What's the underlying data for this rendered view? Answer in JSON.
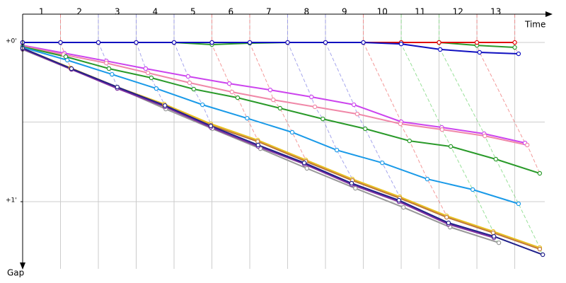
{
  "chart_data": {
    "type": "line",
    "x_label": "Time",
    "y_label": "Gap",
    "categories": [
      "1",
      "2",
      "3",
      "4",
      "5",
      "6",
      "7",
      "8",
      "9",
      "10",
      "11",
      "12",
      "13"
    ],
    "xlim": [
      0,
      13.98
    ],
    "ylim": [
      -0.178,
      1.422
    ],
    "xticks": [
      1,
      2,
      3,
      4,
      5,
      6,
      7,
      8,
      9,
      10,
      11,
      12,
      13
    ],
    "yticks": [
      {
        "value": 0,
        "label": "+0'"
      },
      {
        "value": 1,
        "label": "+1'"
      }
    ],
    "ygrid": [
      0,
      0.5,
      1
    ],
    "grid": true,
    "lap_line_colors": [
      "#f08080",
      "#9090e8",
      "#9090e8",
      "#9090e8",
      "#f08080",
      "#f08080",
      "#9090e8",
      "#9090e8",
      "#f08080",
      "#80d880",
      "#80d880",
      "#f08080",
      "#f08080"
    ],
    "series": [
      {
        "color": "#cc44ee",
        "x": [
          0,
          1.1,
          2.21,
          3.25,
          4.37,
          5.46,
          6.54,
          7.63,
          8.75,
          10.0,
          11.07,
          12.19,
          13.27
        ],
        "values": [
          0.018,
          0.067,
          0.116,
          0.164,
          0.213,
          0.258,
          0.298,
          0.342,
          0.391,
          0.498,
          0.533,
          0.573,
          0.631
        ]
      },
      {
        "color": "#f088a8",
        "x": [
          0,
          1.08,
          2.21,
          3.31,
          4.41,
          5.53,
          6.62,
          7.72,
          8.84,
          9.98,
          11.08,
          12.21,
          13.33
        ],
        "values": [
          0.022,
          0.076,
          0.129,
          0.191,
          0.253,
          0.311,
          0.36,
          0.404,
          0.449,
          0.511,
          0.547,
          0.587,
          0.644
        ]
      },
      {
        "color": "#2a9a2a",
        "x": [
          0,
          1.14,
          2.28,
          3.4,
          4.52,
          5.68,
          6.8,
          7.93,
          9.05,
          10.22,
          11.31,
          12.5,
          13.66
        ],
        "values": [
          0.027,
          0.089,
          0.164,
          0.222,
          0.293,
          0.347,
          0.413,
          0.48,
          0.542,
          0.618,
          0.653,
          0.733,
          0.822
        ]
      },
      {
        "color": "#1a9ae8",
        "x": [
          0,
          1.18,
          2.36,
          3.53,
          4.75,
          5.93,
          7.12,
          8.3,
          9.5,
          10.69,
          11.89,
          13.1
        ],
        "values": [
          0.031,
          0.111,
          0.2,
          0.289,
          0.391,
          0.476,
          0.564,
          0.676,
          0.756,
          0.858,
          0.924,
          1.013
        ]
      },
      {
        "color": "#999999",
        "x": [
          0,
          1.29,
          2.5,
          3.78,
          5.01,
          6.28,
          7.51,
          8.79,
          10.06,
          11.29,
          12.58
        ],
        "values": [
          0.044,
          0.169,
          0.284,
          0.418,
          0.542,
          0.667,
          0.791,
          0.916,
          1.036,
          1.16,
          1.258
        ]
      },
      {
        "color": "#e8c020",
        "x": [
          0,
          1.27,
          2.5,
          3.74,
          4.97,
          6.21,
          7.48,
          8.71,
          9.96,
          11.2,
          12.43,
          13.66
        ],
        "values": [
          0.036,
          0.16,
          0.28,
          0.387,
          0.511,
          0.613,
          0.738,
          0.858,
          0.969,
          1.089,
          1.187,
          1.289
        ]
      },
      {
        "color": "#c07838",
        "x": [
          0,
          1.27,
          2.5,
          3.74,
          4.97,
          6.21,
          7.48,
          8.71,
          9.96,
          11.2,
          12.43,
          13.66
        ],
        "values": [
          0.036,
          0.164,
          0.284,
          0.396,
          0.52,
          0.622,
          0.747,
          0.867,
          0.978,
          1.098,
          1.196,
          1.298
        ]
      },
      {
        "color": "#8030a0",
        "x": [
          0,
          1.29,
          2.5,
          3.76,
          4.97,
          6.22,
          7.44,
          8.69,
          9.94,
          11.25,
          12.45
        ],
        "values": [
          0.04,
          0.169,
          0.289,
          0.404,
          0.533,
          0.653,
          0.764,
          0.893,
          1.0,
          1.142,
          1.227
        ]
      },
      {
        "color": "#20208a",
        "x": [
          0,
          1.29,
          2.5,
          3.76,
          4.97,
          6.22,
          7.44,
          8.69,
          9.94,
          11.25,
          12.45,
          13.74
        ],
        "values": [
          0.036,
          0.164,
          0.28,
          0.396,
          0.524,
          0.644,
          0.756,
          0.884,
          0.991,
          1.133,
          1.218,
          1.333
        ]
      },
      {
        "color": "#2a9a2a",
        "x": [
          0,
          1,
          2,
          3,
          4,
          5,
          6,
          7,
          8,
          9,
          10,
          11,
          12,
          13
        ],
        "values": [
          0,
          0,
          0,
          0,
          0,
          0.013,
          0.004,
          0,
          0,
          0,
          0,
          0,
          0.018,
          0.031
        ]
      },
      {
        "color": "#e00000",
        "x": [
          0,
          1,
          2,
          3,
          4,
          5,
          6,
          7,
          8,
          9,
          10,
          11,
          12,
          13
        ],
        "values": [
          0,
          0,
          0,
          0,
          0,
          0,
          0,
          0,
          0,
          0,
          0,
          0,
          0,
          0
        ]
      },
      {
        "color": "#1010c0",
        "x": [
          0,
          1,
          2,
          3,
          4,
          5,
          6,
          7,
          8,
          9,
          10,
          11.03,
          12.07,
          13.1
        ],
        "values": [
          0,
          0,
          0,
          0,
          0,
          0,
          0,
          0,
          0,
          0,
          0.009,
          0.044,
          0.062,
          0.071
        ]
      }
    ]
  }
}
